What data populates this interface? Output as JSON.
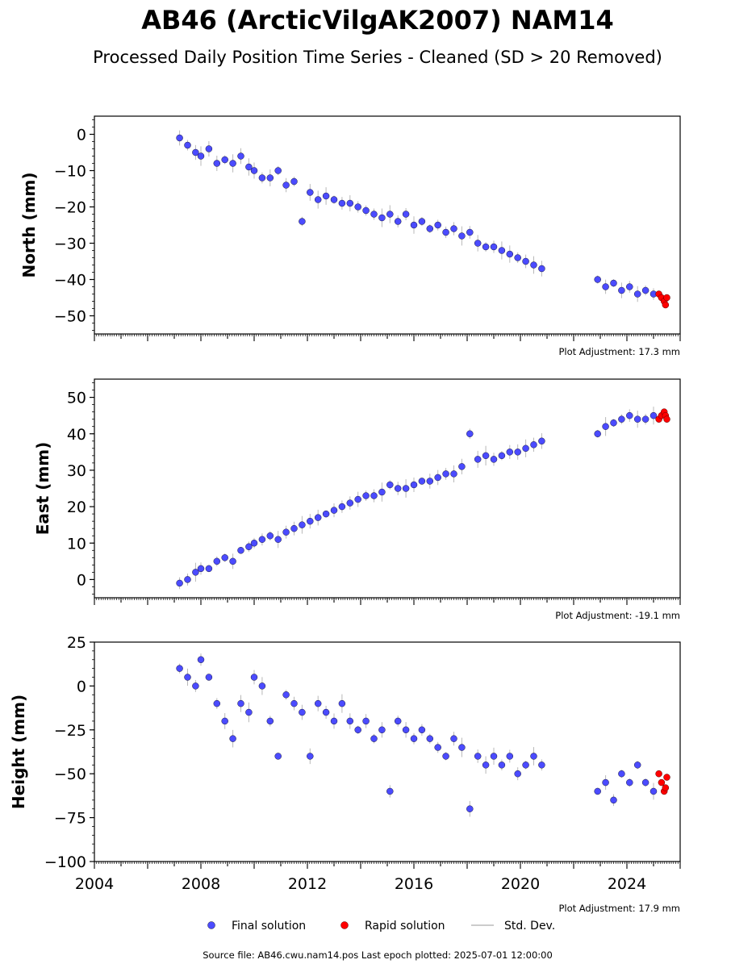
{
  "header": {
    "title": "AB46 (ArcticVilgAK2007) NAM14",
    "subtitle": "Processed Daily Position Time Series - Cleaned (SD > 20 Removed)"
  },
  "footer": {
    "source": "Source file: AB46.cwu.nam14.pos  Last epoch plotted: 2025-07-01 12:00:00"
  },
  "legend": {
    "placement": "bottom-center",
    "items": [
      {
        "label": "Final solution",
        "color": "#4b4bff",
        "marker": "circle"
      },
      {
        "label": "Rapid solution",
        "color": "#ff0000",
        "marker": "circle"
      },
      {
        "label": "Std. Dev.",
        "color": "#cccccc",
        "marker": "line"
      }
    ]
  },
  "colors": {
    "final": "#4b4bff",
    "rapid": "#ff0000",
    "stddev": "#b8b8b8",
    "marker_edge": "#1a1a3a"
  },
  "chart_data": [
    {
      "type": "scatter",
      "panel": "north",
      "ylabel": "North (mm)",
      "xlim": [
        2004,
        2026
      ],
      "ylim": [
        -55,
        5
      ],
      "yticks": [
        0,
        -10,
        -20,
        -30,
        -40,
        -50
      ],
      "ytick_labels": [
        "0",
        "−10",
        "−20",
        "−30",
        "−40",
        "−50"
      ],
      "adjustment": "Plot Adjustment: 17.3 mm",
      "series": [
        {
          "name": "Final solution",
          "x": [
            2007.2,
            2007.5,
            2007.8,
            2008.0,
            2008.3,
            2008.6,
            2008.9,
            2009.2,
            2009.5,
            2009.8,
            2010.0,
            2010.3,
            2010.6,
            2010.9,
            2011.2,
            2011.5,
            2011.8,
            2012.1,
            2012.4,
            2012.7,
            2013.0,
            2013.3,
            2013.6,
            2013.9,
            2014.2,
            2014.5,
            2014.8,
            2015.1,
            2015.4,
            2015.7,
            2016.0,
            2016.3,
            2016.6,
            2016.9,
            2017.2,
            2017.5,
            2017.8,
            2018.1,
            2018.4,
            2018.7,
            2019.0,
            2019.3,
            2019.6,
            2019.9,
            2020.2,
            2020.5,
            2020.8,
            2022.9,
            2023.2,
            2023.5,
            2023.8,
            2024.1,
            2024.4,
            2024.7,
            2025.0
          ],
          "values": [
            -1,
            -3,
            -5,
            -6,
            -4,
            -8,
            -7,
            -8,
            -6,
            -9,
            -10,
            -12,
            -12,
            -10,
            -14,
            -13,
            -24,
            -16,
            -18,
            -17,
            -18,
            -19,
            -19,
            -20,
            -21,
            -22,
            -23,
            -22,
            -24,
            -22,
            -25,
            -24,
            -26,
            -25,
            -27,
            -26,
            -28,
            -27,
            -30,
            -31,
            -31,
            -32,
            -33,
            -34,
            -35,
            -36,
            -37,
            -40,
            -42,
            -41,
            -43,
            -42,
            -44,
            -43,
            -44
          ]
        },
        {
          "name": "Rapid solution",
          "x": [
            2025.2,
            2025.3,
            2025.4,
            2025.45,
            2025.5
          ],
          "values": [
            -44,
            -45,
            -46,
            -47,
            -45
          ]
        }
      ]
    },
    {
      "type": "scatter",
      "panel": "east",
      "ylabel": "East (mm)",
      "xlim": [
        2004,
        2026
      ],
      "ylim": [
        -5,
        55
      ],
      "yticks": [
        0,
        10,
        20,
        30,
        40,
        50
      ],
      "ytick_labels": [
        "0",
        "10",
        "20",
        "30",
        "40",
        "50"
      ],
      "adjustment": "Plot Adjustment: -19.1 mm",
      "series": [
        {
          "name": "Final solution",
          "x": [
            2007.2,
            2007.5,
            2007.8,
            2008.0,
            2008.3,
            2008.6,
            2008.9,
            2009.2,
            2009.5,
            2009.8,
            2010.0,
            2010.3,
            2010.6,
            2010.9,
            2011.2,
            2011.5,
            2011.8,
            2012.1,
            2012.4,
            2012.7,
            2013.0,
            2013.3,
            2013.6,
            2013.9,
            2014.2,
            2014.5,
            2014.8,
            2015.1,
            2015.4,
            2015.7,
            2016.0,
            2016.3,
            2016.6,
            2016.9,
            2017.2,
            2017.5,
            2017.8,
            2018.1,
            2018.4,
            2018.7,
            2019.0,
            2019.3,
            2019.6,
            2019.9,
            2020.2,
            2020.5,
            2020.8,
            2022.9,
            2023.2,
            2023.5,
            2023.8,
            2024.1,
            2024.4,
            2024.7,
            2025.0
          ],
          "values": [
            -1,
            0,
            2,
            3,
            3,
            5,
            6,
            5,
            8,
            9,
            10,
            11,
            12,
            11,
            13,
            14,
            15,
            16,
            17,
            18,
            19,
            20,
            21,
            22,
            23,
            23,
            24,
            26,
            25,
            25,
            26,
            27,
            27,
            28,
            29,
            29,
            31,
            40,
            33,
            34,
            33,
            34,
            35,
            35,
            36,
            37,
            38,
            40,
            42,
            43,
            44,
            45,
            44,
            44,
            45
          ]
        },
        {
          "name": "Rapid solution",
          "x": [
            2025.2,
            2025.3,
            2025.4,
            2025.45,
            2025.5
          ],
          "values": [
            44,
            45,
            46,
            45,
            44
          ]
        }
      ]
    },
    {
      "type": "scatter",
      "panel": "height",
      "ylabel": "Height (mm)",
      "xlabel": "",
      "xlim": [
        2004,
        2026
      ],
      "xticks": [
        2004,
        2008,
        2012,
        2016,
        2020,
        2024
      ],
      "xtick_labels": [
        "2004",
        "2008",
        "2012",
        "2016",
        "2020",
        "2024"
      ],
      "ylim": [
        -100,
        25
      ],
      "yticks": [
        25,
        0,
        -25,
        -50,
        -75,
        -100
      ],
      "ytick_labels": [
        "25",
        "0",
        "−25",
        "−50",
        "−75",
        "−100"
      ],
      "adjustment": "Plot Adjustment: 17.9 mm",
      "series": [
        {
          "name": "Final solution",
          "x": [
            2007.2,
            2007.5,
            2007.8,
            2008.0,
            2008.3,
            2008.6,
            2008.9,
            2009.2,
            2009.5,
            2009.8,
            2010.0,
            2010.3,
            2010.6,
            2010.9,
            2011.2,
            2011.5,
            2011.8,
            2012.1,
            2012.4,
            2012.7,
            2013.0,
            2013.3,
            2013.6,
            2013.9,
            2014.2,
            2014.5,
            2014.8,
            2015.1,
            2015.4,
            2015.7,
            2016.0,
            2016.3,
            2016.6,
            2016.9,
            2017.2,
            2017.5,
            2017.8,
            2018.1,
            2018.4,
            2018.7,
            2019.0,
            2019.3,
            2019.6,
            2019.9,
            2020.2,
            2020.5,
            2020.8,
            2022.9,
            2023.2,
            2023.5,
            2023.8,
            2024.1,
            2024.4,
            2024.7,
            2025.0
          ],
          "values": [
            10,
            5,
            0,
            15,
            5,
            -10,
            -20,
            -30,
            -10,
            -15,
            5,
            0,
            -20,
            -40,
            -5,
            -10,
            -15,
            -40,
            -10,
            -15,
            -20,
            -10,
            -20,
            -25,
            -20,
            -30,
            -25,
            -60,
            -20,
            -25,
            -30,
            -25,
            -30,
            -35,
            -40,
            -30,
            -35,
            -70,
            -40,
            -45,
            -40,
            -45,
            -40,
            -50,
            -45,
            -40,
            -45,
            -60,
            -55,
            -65,
            -50,
            -55,
            -45,
            -55,
            -60
          ]
        },
        {
          "name": "Rapid solution",
          "x": [
            2025.2,
            2025.3,
            2025.4,
            2025.45,
            2025.5
          ],
          "values": [
            -50,
            -55,
            -60,
            -58,
            -52
          ]
        }
      ]
    }
  ]
}
